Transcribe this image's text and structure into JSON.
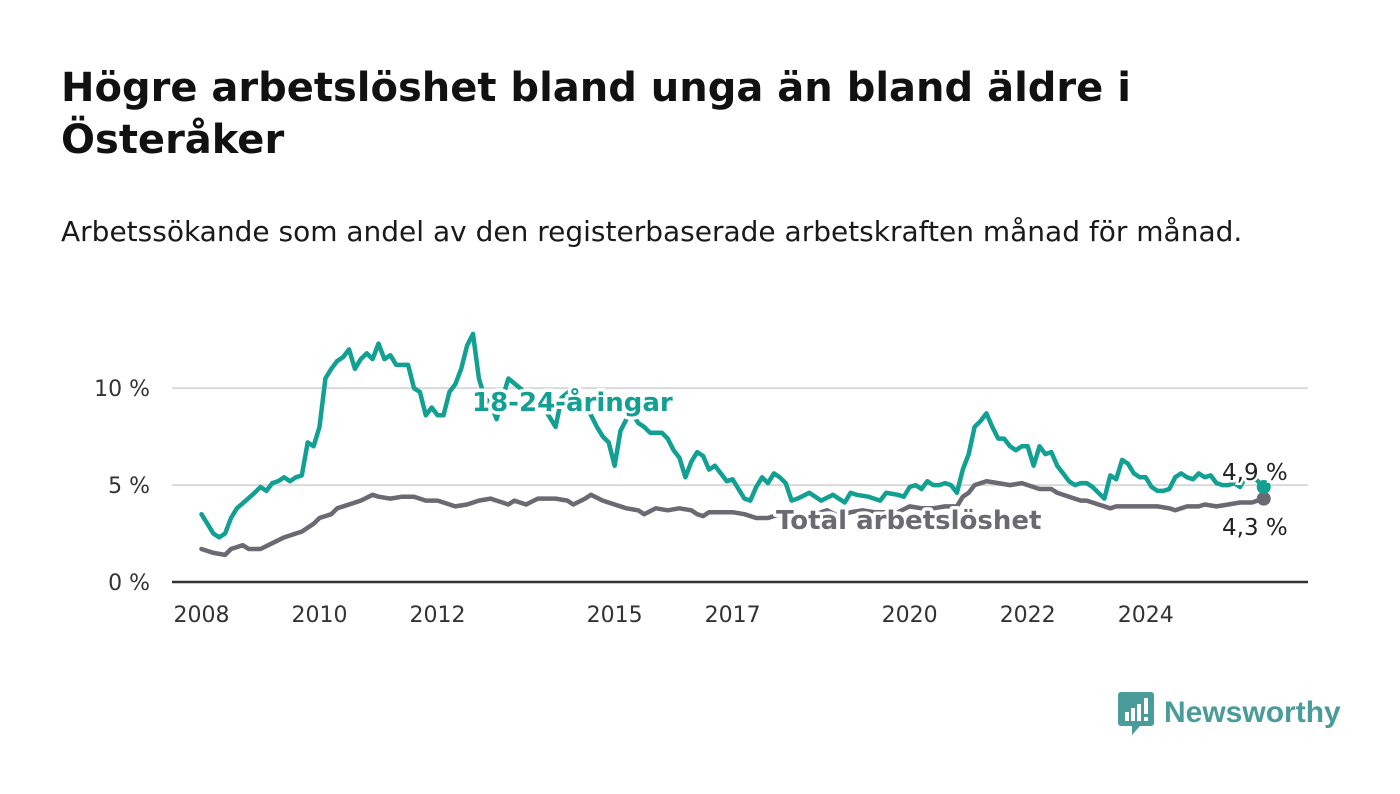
{
  "header": {
    "title": "Högre arbetslöshet bland unga än bland äldre i Österåker",
    "subtitle": "Arbetssökande som andel av den registerbaserade arbetskraften månad för månad."
  },
  "brand": {
    "name": "Newsworthy",
    "color": "#4a9b9a"
  },
  "colors": {
    "youth": "#12a092",
    "total": "#6b6a72",
    "grid": "#d9d9d9",
    "axis": "#333333"
  },
  "chart_data": {
    "type": "line",
    "ylim": [
      0,
      13
    ],
    "xlim": [
      2007.5,
      2026.75
    ],
    "grid": true,
    "y_ticks": [
      {
        "value": 0,
        "label": "0 %"
      },
      {
        "value": 5,
        "label": "5 %"
      },
      {
        "value": 10,
        "label": "10 %"
      }
    ],
    "x_ticks": [
      {
        "value": 2008,
        "label": "2008"
      },
      {
        "value": 2010,
        "label": "2010"
      },
      {
        "value": 2012,
        "label": "2012"
      },
      {
        "value": 2015,
        "label": "2015"
      },
      {
        "value": 2017,
        "label": "2017"
      },
      {
        "value": 2020,
        "label": "2020"
      },
      {
        "value": 2022,
        "label": "2022"
      },
      {
        "value": 2024,
        "label": "2024"
      }
    ],
    "series": [
      {
        "name": "18-24-åringar",
        "color": "#12a092",
        "end_label": "4,9 %",
        "points": [
          [
            2008.0,
            3.5
          ],
          [
            2008.1,
            3.0
          ],
          [
            2008.2,
            2.5
          ],
          [
            2008.3,
            2.3
          ],
          [
            2008.4,
            2.5
          ],
          [
            2008.5,
            3.3
          ],
          [
            2008.6,
            3.8
          ],
          [
            2008.75,
            4.2
          ],
          [
            2008.9,
            4.6
          ],
          [
            2009.0,
            4.9
          ],
          [
            2009.1,
            4.7
          ],
          [
            2009.2,
            5.1
          ],
          [
            2009.3,
            5.2
          ],
          [
            2009.4,
            5.4
          ],
          [
            2009.5,
            5.2
          ],
          [
            2009.6,
            5.4
          ],
          [
            2009.7,
            5.5
          ],
          [
            2009.8,
            7.2
          ],
          [
            2009.9,
            7.0
          ],
          [
            2010.0,
            8.0
          ],
          [
            2010.1,
            10.5
          ],
          [
            2010.2,
            11.0
          ],
          [
            2010.3,
            11.4
          ],
          [
            2010.4,
            11.6
          ],
          [
            2010.5,
            12.0
          ],
          [
            2010.6,
            11.0
          ],
          [
            2010.7,
            11.5
          ],
          [
            2010.8,
            11.8
          ],
          [
            2010.9,
            11.5
          ],
          [
            2011.0,
            12.3
          ],
          [
            2011.1,
            11.5
          ],
          [
            2011.2,
            11.7
          ],
          [
            2011.3,
            11.2
          ],
          [
            2011.5,
            11.2
          ],
          [
            2011.6,
            10.0
          ],
          [
            2011.7,
            9.8
          ],
          [
            2011.8,
            8.6
          ],
          [
            2011.9,
            9.0
          ],
          [
            2012.0,
            8.6
          ],
          [
            2012.1,
            8.6
          ],
          [
            2012.2,
            9.8
          ],
          [
            2012.3,
            10.2
          ],
          [
            2012.4,
            11.0
          ],
          [
            2012.5,
            12.2
          ],
          [
            2012.6,
            12.8
          ],
          [
            2012.7,
            10.5
          ],
          [
            2012.8,
            9.5
          ],
          [
            2012.9,
            9.2
          ],
          [
            2013.0,
            8.4
          ],
          [
            2013.1,
            9.5
          ],
          [
            2013.2,
            10.5
          ],
          [
            2013.4,
            10.0
          ],
          [
            2013.6,
            9.5
          ],
          [
            2013.8,
            9.0
          ],
          [
            2014.0,
            8.0
          ],
          [
            2014.1,
            9.5
          ],
          [
            2014.3,
            10.0
          ],
          [
            2014.5,
            9.2
          ],
          [
            2014.7,
            8.0
          ],
          [
            2014.8,
            7.5
          ],
          [
            2014.9,
            7.2
          ],
          [
            2015.0,
            6.0
          ],
          [
            2015.1,
            7.8
          ],
          [
            2015.2,
            8.4
          ],
          [
            2015.3,
            8.7
          ],
          [
            2015.4,
            8.2
          ],
          [
            2015.5,
            8.0
          ],
          [
            2015.6,
            7.7
          ],
          [
            2015.8,
            7.7
          ],
          [
            2015.9,
            7.4
          ],
          [
            2016.0,
            6.8
          ],
          [
            2016.1,
            6.4
          ],
          [
            2016.2,
            5.4
          ],
          [
            2016.3,
            6.2
          ],
          [
            2016.4,
            6.7
          ],
          [
            2016.5,
            6.5
          ],
          [
            2016.6,
            5.8
          ],
          [
            2016.7,
            6.0
          ],
          [
            2016.8,
            5.6
          ],
          [
            2016.9,
            5.2
          ],
          [
            2017.0,
            5.3
          ],
          [
            2017.1,
            4.8
          ],
          [
            2017.2,
            4.3
          ],
          [
            2017.3,
            4.2
          ],
          [
            2017.4,
            4.9
          ],
          [
            2017.5,
            5.4
          ],
          [
            2017.6,
            5.1
          ],
          [
            2017.7,
            5.6
          ],
          [
            2017.8,
            5.4
          ],
          [
            2017.9,
            5.1
          ],
          [
            2018.0,
            4.2
          ],
          [
            2018.1,
            4.3
          ],
          [
            2018.3,
            4.6
          ],
          [
            2018.5,
            4.2
          ],
          [
            2018.7,
            4.5
          ],
          [
            2018.9,
            4.1
          ],
          [
            2019.0,
            4.6
          ],
          [
            2019.1,
            4.5
          ],
          [
            2019.3,
            4.4
          ],
          [
            2019.5,
            4.2
          ],
          [
            2019.6,
            4.6
          ],
          [
            2019.8,
            4.5
          ],
          [
            2019.9,
            4.4
          ],
          [
            2020.0,
            4.9
          ],
          [
            2020.1,
            5.0
          ],
          [
            2020.2,
            4.8
          ],
          [
            2020.3,
            5.2
          ],
          [
            2020.4,
            5.0
          ],
          [
            2020.5,
            5.0
          ],
          [
            2020.6,
            5.1
          ],
          [
            2020.7,
            5.0
          ],
          [
            2020.8,
            4.6
          ],
          [
            2020.9,
            5.8
          ],
          [
            2021.0,
            6.6
          ],
          [
            2021.1,
            8.0
          ],
          [
            2021.2,
            8.3
          ],
          [
            2021.3,
            8.7
          ],
          [
            2021.4,
            8.0
          ],
          [
            2021.5,
            7.4
          ],
          [
            2021.6,
            7.4
          ],
          [
            2021.7,
            7.0
          ],
          [
            2021.8,
            6.8
          ],
          [
            2021.9,
            7.0
          ],
          [
            2022.0,
            7.0
          ],
          [
            2022.1,
            6.0
          ],
          [
            2022.2,
            7.0
          ],
          [
            2022.3,
            6.6
          ],
          [
            2022.4,
            6.7
          ],
          [
            2022.5,
            6.0
          ],
          [
            2022.6,
            5.6
          ],
          [
            2022.7,
            5.2
          ],
          [
            2022.8,
            5.0
          ],
          [
            2022.9,
            5.1
          ],
          [
            2023.0,
            5.1
          ],
          [
            2023.1,
            4.9
          ],
          [
            2023.2,
            4.6
          ],
          [
            2023.3,
            4.3
          ],
          [
            2023.4,
            5.5
          ],
          [
            2023.5,
            5.3
          ],
          [
            2023.6,
            6.3
          ],
          [
            2023.7,
            6.1
          ],
          [
            2023.8,
            5.6
          ],
          [
            2023.9,
            5.4
          ],
          [
            2024.0,
            5.4
          ],
          [
            2024.1,
            4.9
          ],
          [
            2024.2,
            4.7
          ],
          [
            2024.3,
            4.7
          ],
          [
            2024.4,
            4.8
          ],
          [
            2024.5,
            5.4
          ],
          [
            2024.6,
            5.6
          ],
          [
            2024.7,
            5.4
          ],
          [
            2024.8,
            5.3
          ],
          [
            2024.9,
            5.6
          ],
          [
            2025.0,
            5.4
          ],
          [
            2025.1,
            5.5
          ],
          [
            2025.2,
            5.1
          ],
          [
            2025.3,
            5.0
          ],
          [
            2025.4,
            5.0
          ],
          [
            2025.5,
            5.1
          ],
          [
            2025.6,
            4.9
          ],
          [
            2025.7,
            5.5
          ],
          [
            2025.8,
            5.5
          ],
          [
            2025.9,
            5.2
          ],
          [
            2026.0,
            4.9
          ]
        ]
      },
      {
        "name": "Total arbetslöshet",
        "color": "#6b6a72",
        "end_label": "4,3 %",
        "points": [
          [
            2008.0,
            1.7
          ],
          [
            2008.2,
            1.5
          ],
          [
            2008.4,
            1.4
          ],
          [
            2008.5,
            1.7
          ],
          [
            2008.7,
            1.9
          ],
          [
            2008.8,
            1.7
          ],
          [
            2009.0,
            1.7
          ],
          [
            2009.2,
            2.0
          ],
          [
            2009.4,
            2.3
          ],
          [
            2009.6,
            2.5
          ],
          [
            2009.7,
            2.6
          ],
          [
            2009.9,
            3.0
          ],
          [
            2010.0,
            3.3
          ],
          [
            2010.2,
            3.5
          ],
          [
            2010.3,
            3.8
          ],
          [
            2010.5,
            4.0
          ],
          [
            2010.7,
            4.2
          ],
          [
            2010.9,
            4.5
          ],
          [
            2011.0,
            4.4
          ],
          [
            2011.2,
            4.3
          ],
          [
            2011.4,
            4.4
          ],
          [
            2011.6,
            4.4
          ],
          [
            2011.8,
            4.2
          ],
          [
            2012.0,
            4.2
          ],
          [
            2012.1,
            4.1
          ],
          [
            2012.3,
            3.9
          ],
          [
            2012.5,
            4.0
          ],
          [
            2012.7,
            4.2
          ],
          [
            2012.9,
            4.3
          ],
          [
            2013.0,
            4.2
          ],
          [
            2013.1,
            4.1
          ],
          [
            2013.2,
            4.0
          ],
          [
            2013.3,
            4.2
          ],
          [
            2013.5,
            4.0
          ],
          [
            2013.7,
            4.3
          ],
          [
            2013.9,
            4.3
          ],
          [
            2014.0,
            4.3
          ],
          [
            2014.2,
            4.2
          ],
          [
            2014.3,
            4.0
          ],
          [
            2014.5,
            4.3
          ],
          [
            2014.6,
            4.5
          ],
          [
            2014.8,
            4.2
          ],
          [
            2015.0,
            4.0
          ],
          [
            2015.2,
            3.8
          ],
          [
            2015.4,
            3.7
          ],
          [
            2015.5,
            3.5
          ],
          [
            2015.7,
            3.8
          ],
          [
            2015.9,
            3.7
          ],
          [
            2016.1,
            3.8
          ],
          [
            2016.3,
            3.7
          ],
          [
            2016.4,
            3.5
          ],
          [
            2016.5,
            3.4
          ],
          [
            2016.6,
            3.6
          ],
          [
            2016.8,
            3.6
          ],
          [
            2017.0,
            3.6
          ],
          [
            2017.2,
            3.5
          ],
          [
            2017.4,
            3.3
          ],
          [
            2017.6,
            3.3
          ],
          [
            2017.8,
            3.5
          ],
          [
            2017.9,
            3.6
          ],
          [
            2018.0,
            3.4
          ],
          [
            2018.2,
            3.4
          ],
          [
            2018.4,
            3.5
          ],
          [
            2018.6,
            3.7
          ],
          [
            2018.8,
            3.4
          ],
          [
            2019.0,
            3.6
          ],
          [
            2019.2,
            3.7
          ],
          [
            2019.4,
            3.6
          ],
          [
            2019.6,
            3.6
          ],
          [
            2019.8,
            3.6
          ],
          [
            2020.0,
            3.9
          ],
          [
            2020.2,
            3.8
          ],
          [
            2020.4,
            3.8
          ],
          [
            2020.6,
            3.9
          ],
          [
            2020.8,
            3.9
          ],
          [
            2020.9,
            4.4
          ],
          [
            2021.0,
            4.6
          ],
          [
            2021.1,
            5.0
          ],
          [
            2021.3,
            5.2
          ],
          [
            2021.5,
            5.1
          ],
          [
            2021.7,
            5.0
          ],
          [
            2021.9,
            5.1
          ],
          [
            2022.0,
            5.0
          ],
          [
            2022.2,
            4.8
          ],
          [
            2022.4,
            4.8
          ],
          [
            2022.5,
            4.6
          ],
          [
            2022.7,
            4.4
          ],
          [
            2022.9,
            4.2
          ],
          [
            2023.0,
            4.2
          ],
          [
            2023.2,
            4.0
          ],
          [
            2023.4,
            3.8
          ],
          [
            2023.5,
            3.9
          ],
          [
            2023.7,
            3.9
          ],
          [
            2023.9,
            3.9
          ],
          [
            2024.0,
            3.9
          ],
          [
            2024.2,
            3.9
          ],
          [
            2024.4,
            3.8
          ],
          [
            2024.5,
            3.7
          ],
          [
            2024.7,
            3.9
          ],
          [
            2024.9,
            3.9
          ],
          [
            2025.0,
            4.0
          ],
          [
            2025.2,
            3.9
          ],
          [
            2025.4,
            4.0
          ],
          [
            2025.6,
            4.1
          ],
          [
            2025.8,
            4.1
          ],
          [
            2026.0,
            4.3
          ]
        ]
      }
    ]
  }
}
